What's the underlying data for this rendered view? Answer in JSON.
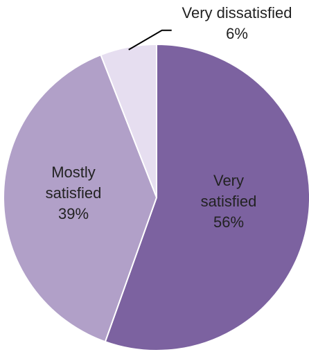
{
  "chart_data": {
    "type": "pie",
    "slices": [
      {
        "name": "Very satisfied",
        "line1": "Very",
        "line2": "satisfied",
        "percent": "56%",
        "value": 56,
        "color": "#7c62a0"
      },
      {
        "name": "Mostly satisfied",
        "line1": "Mostly",
        "line2": "satisfied",
        "percent": "39%",
        "value": 39,
        "color": "#b1a0c8"
      },
      {
        "name": "Very dissatisfied",
        "line1": "Very dissatisfied",
        "line2": "",
        "percent": "6%",
        "value": 6,
        "color": "#e6def0"
      }
    ],
    "start_at": "top",
    "direction": "clockwise",
    "edge_color": "#ffffff",
    "leader_color": "#000000"
  }
}
